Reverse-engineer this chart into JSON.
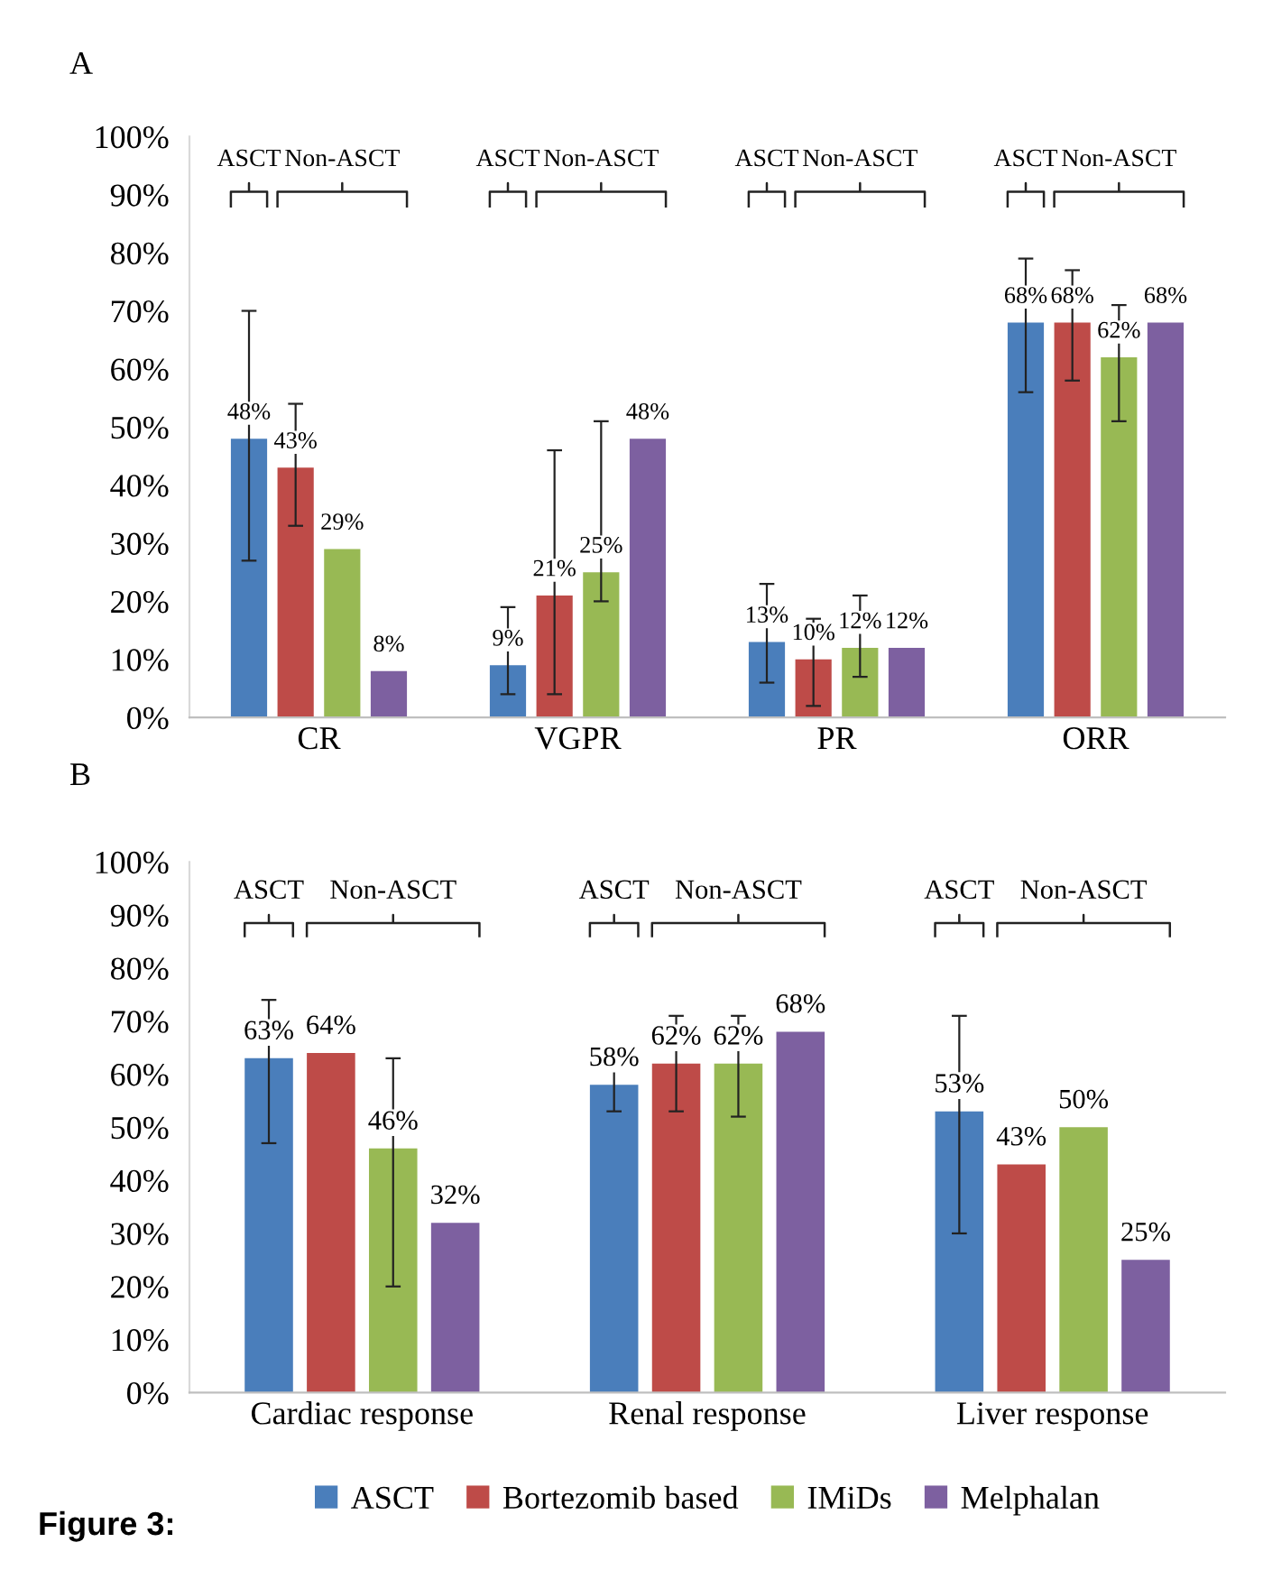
{
  "chart_data": [
    {
      "type": "bar",
      "title": "A",
      "categories": [
        "CR",
        "VGPR",
        "PR",
        "ORR"
      ],
      "series": [
        {
          "color": "#4a7ebb",
          "values": [
            48,
            9,
            13,
            68
          ],
          "value_labels": [
            "48%",
            "9%",
            "13%",
            "68%"
          ],
          "errors": [
            [
              27,
              70
            ],
            [
              4,
              19
            ],
            [
              6,
              23
            ],
            [
              56,
              79
            ]
          ]
        },
        {
          "color": "#be4b48",
          "values": [
            43,
            21,
            10,
            68
          ],
          "value_labels": [
            "43%",
            "21%",
            "10%",
            "68%"
          ],
          "errors": [
            [
              33,
              54
            ],
            [
              4,
              46
            ],
            [
              2,
              17
            ],
            [
              58,
              77
            ]
          ]
        },
        {
          "color": "#98b954",
          "values": [
            29,
            25,
            12,
            62
          ],
          "value_labels": [
            "29%",
            "25%",
            "12%",
            "62%"
          ],
          "errors": [
            null,
            [
              20,
              51
            ],
            [
              7,
              21
            ],
            [
              51,
              71
            ]
          ]
        },
        {
          "color": "#7d60a0",
          "values": [
            8,
            48,
            12,
            68
          ],
          "value_labels": [
            "8%",
            "48%",
            "12%",
            "68%"
          ],
          "errors": [
            null,
            null,
            null,
            null
          ]
        }
      ],
      "ylim": [
        0,
        100
      ],
      "yticks": [
        {
          "value": 0,
          "label": "0%"
        },
        {
          "value": 10,
          "label": "10%"
        },
        {
          "value": 20,
          "label": "20%"
        },
        {
          "value": 30,
          "label": "30%"
        },
        {
          "value": 40,
          "label": "40%"
        },
        {
          "value": 50,
          "label": "50%"
        },
        {
          "value": 60,
          "label": "60%"
        },
        {
          "value": 70,
          "label": "70%"
        },
        {
          "value": 80,
          "label": "80%"
        },
        {
          "value": 90,
          "label": "90%"
        },
        {
          "value": 100,
          "label": "100%"
        }
      ],
      "grid": false,
      "legend": false,
      "annotations": [
        "ASCT",
        "Non-ASCT",
        "ASCT",
        "Non-ASCT",
        "ASCT",
        "Non-ASCT",
        "ASCT",
        "Non-ASCT"
      ]
    },
    {
      "type": "bar",
      "title": "B",
      "categories": [
        "Cardiac response",
        "Renal response",
        "Liver response"
      ],
      "series": [
        {
          "name": "ASCT",
          "color": "#4a7ebb",
          "values": [
            63,
            58,
            53
          ],
          "value_labels": [
            "63%",
            "58%",
            "53%"
          ],
          "errors": [
            [
              47,
              74
            ],
            [
              53,
              63
            ],
            [
              30,
              71
            ]
          ]
        },
        {
          "name": "Bortezomib based",
          "color": "#be4b48",
          "values": [
            64,
            62,
            43
          ],
          "value_labels": [
            "64%",
            "62%",
            "43%"
          ],
          "errors": [
            null,
            [
              53,
              71
            ],
            null
          ]
        },
        {
          "name": "IMiDs",
          "color": "#98b954",
          "values": [
            46,
            62,
            50
          ],
          "value_labels": [
            "46%",
            "62%",
            "50%"
          ],
          "errors": [
            [
              20,
              63
            ],
            [
              52,
              71
            ],
            null
          ]
        },
        {
          "name": "Melphalan",
          "color": "#7d60a0",
          "values": [
            32,
            68,
            25
          ],
          "value_labels": [
            "32%",
            "68%",
            "25%"
          ],
          "errors": [
            null,
            null,
            null
          ]
        }
      ],
      "ylim": [
        0,
        100
      ],
      "yticks": [
        {
          "value": 0,
          "label": "0%"
        },
        {
          "value": 10,
          "label": "10%"
        },
        {
          "value": 20,
          "label": "20%"
        },
        {
          "value": 30,
          "label": "30%"
        },
        {
          "value": 40,
          "label": "40%"
        },
        {
          "value": 50,
          "label": "50%"
        },
        {
          "value": 60,
          "label": "60%"
        },
        {
          "value": 70,
          "label": "70%"
        },
        {
          "value": 80,
          "label": "80%"
        },
        {
          "value": 90,
          "label": "90%"
        },
        {
          "value": 100,
          "label": "100%"
        }
      ],
      "grid": false,
      "legend": "bottom",
      "annotations": [
        "ASCT",
        "Non-ASCT",
        "ASCT",
        "Non-ASCT",
        "ASCT",
        "Non-ASCT",
        "Figure 3:"
      ]
    }
  ]
}
